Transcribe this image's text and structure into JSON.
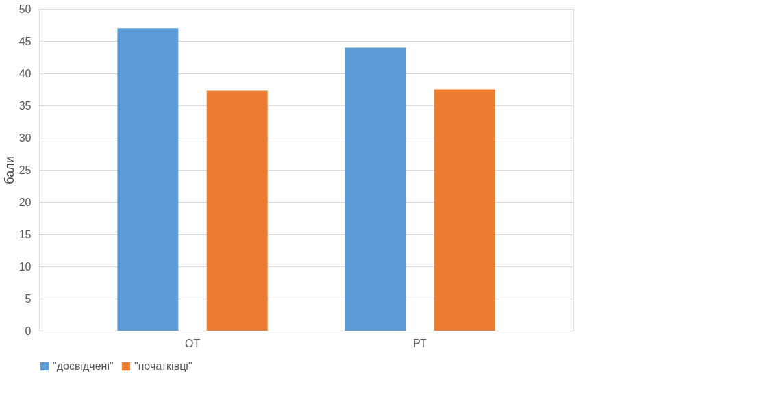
{
  "chart_data": {
    "type": "bar",
    "ylabel": "бали",
    "categories": [
      "ОТ",
      "РТ"
    ],
    "series": [
      {
        "name": "\"досвідчені\"",
        "color": "#5b9bd5",
        "values": [
          47,
          44
        ]
      },
      {
        "name": "\"початківці\"",
        "color": "#ed7d31",
        "values": [
          37.3,
          37.5
        ]
      }
    ],
    "ylim": [
      0,
      50
    ],
    "yticks": [
      0,
      5,
      10,
      15,
      20,
      25,
      30,
      35,
      40,
      45,
      50
    ],
    "grid": "y",
    "legend": "bottom"
  }
}
